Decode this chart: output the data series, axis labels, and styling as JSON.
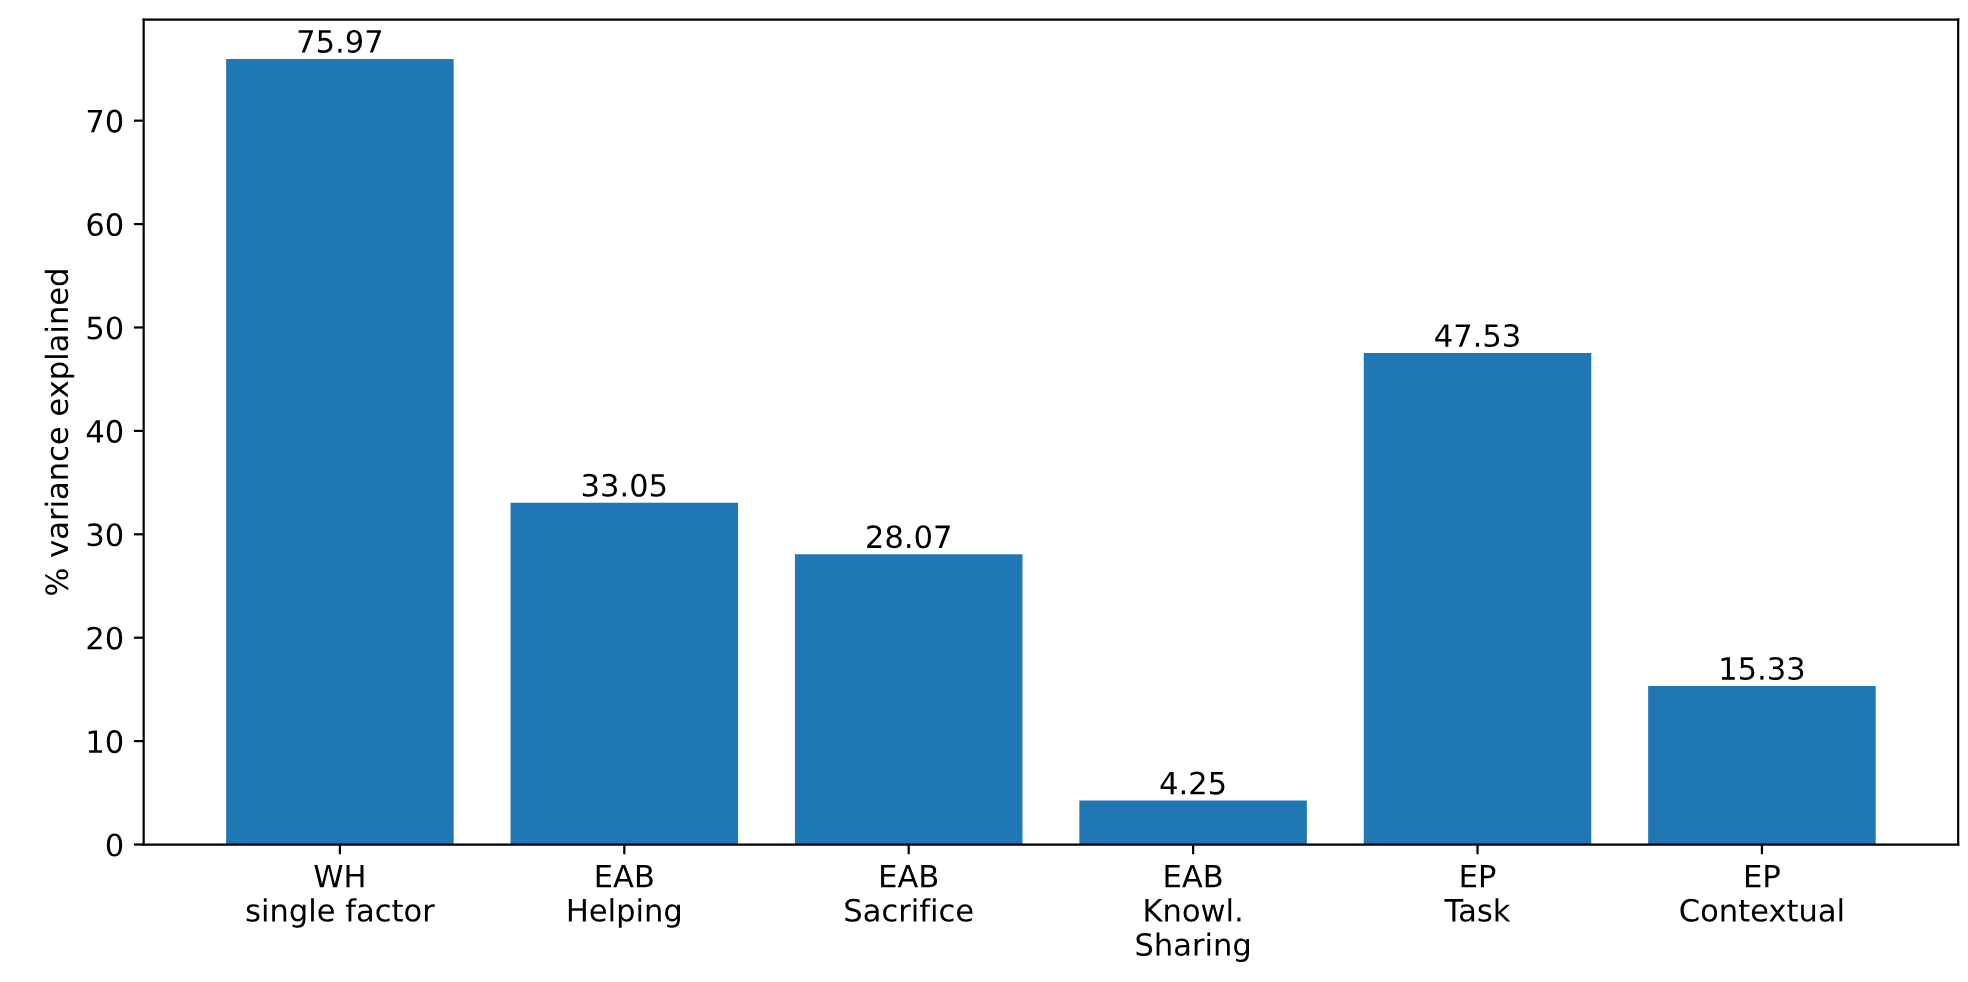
{
  "chart_data": {
    "type": "bar",
    "ylabel": "% variance explained",
    "categories": [
      "WH\nsingle factor",
      "EAB\nHelping",
      "EAB\nSacrifice",
      "EAB\nKnowl.\nSharing",
      "EP\nTask",
      "EP\nContextual"
    ],
    "values": [
      75.97,
      33.05,
      28.07,
      4.25,
      47.53,
      15.33
    ],
    "color": "#1f77b4",
    "data_labels": true,
    "ylim": [
      0,
      79.77
    ],
    "yticks": [
      0,
      10,
      20,
      30,
      40,
      50,
      60,
      70
    ],
    "grid": false
  }
}
